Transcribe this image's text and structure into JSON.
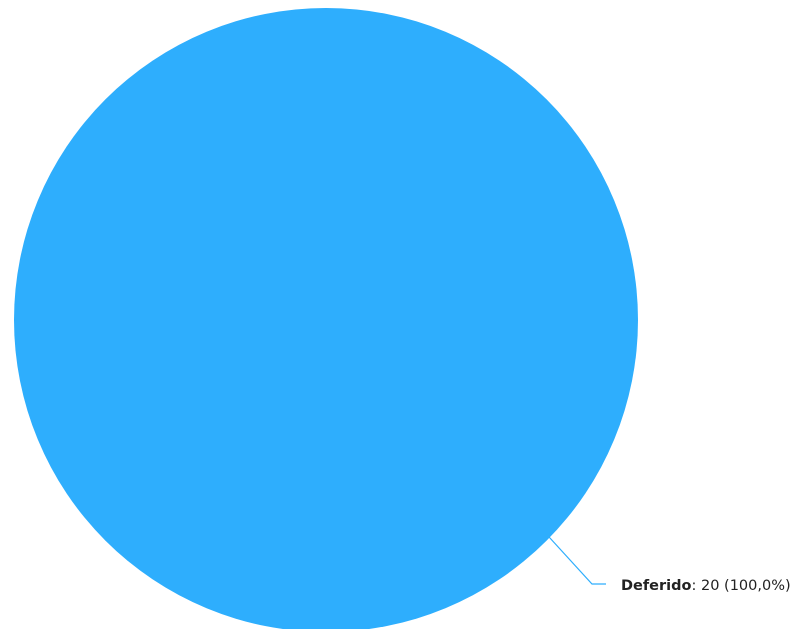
{
  "chart_data": {
    "type": "pie",
    "slices": [
      {
        "name": "Deferido",
        "value": 20,
        "percent_label": "100,0%",
        "color": "#2eaefd"
      }
    ],
    "title": "",
    "legend": "none",
    "label_placement": "outside-bottom-right-with-leader"
  }
}
